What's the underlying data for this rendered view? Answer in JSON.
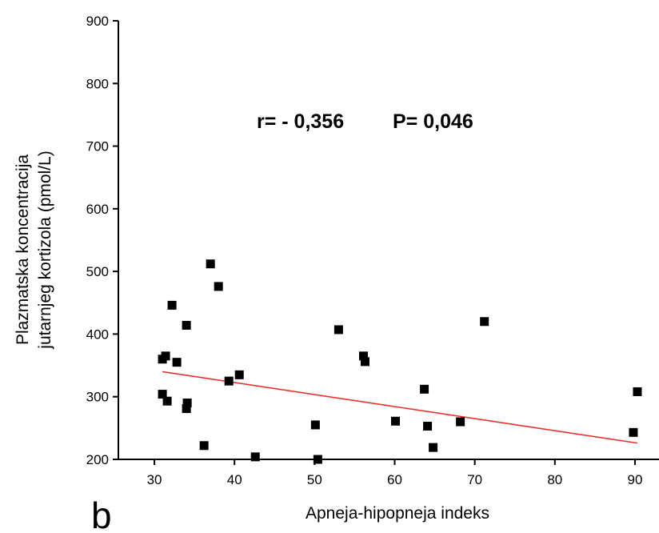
{
  "chart_data": {
    "type": "scatter",
    "xlabel": "Apneja-hipopneja indeks",
    "ylabel_lines": [
      "Plazmatska koncentracija",
      "jutarnjeg kortizola (pmol/L)"
    ],
    "annotation_r": "r= - 0,356",
    "annotation_p": "P= 0,046",
    "panel_label": "b",
    "xlim": [
      25.5,
      93
    ],
    "ylim": [
      200,
      900
    ],
    "x_ticks": [
      30,
      40,
      50,
      60,
      70,
      80,
      90
    ],
    "y_ticks": [
      200,
      300,
      400,
      500,
      600,
      700,
      800,
      900
    ],
    "grid": false,
    "marker_color": "#000000",
    "trend_color": "#e8322e",
    "points": [
      {
        "x": 31.0,
        "y": 360
      },
      {
        "x": 31.4,
        "y": 365
      },
      {
        "x": 31.0,
        "y": 304
      },
      {
        "x": 31.6,
        "y": 293
      },
      {
        "x": 32.2,
        "y": 446
      },
      {
        "x": 32.8,
        "y": 355
      },
      {
        "x": 34.0,
        "y": 414
      },
      {
        "x": 34.1,
        "y": 290
      },
      {
        "x": 34.0,
        "y": 281
      },
      {
        "x": 36.2,
        "y": 222
      },
      {
        "x": 37.0,
        "y": 512
      },
      {
        "x": 38.0,
        "y": 476
      },
      {
        "x": 39.3,
        "y": 325
      },
      {
        "x": 40.6,
        "y": 335
      },
      {
        "x": 42.6,
        "y": 204
      },
      {
        "x": 50.1,
        "y": 255
      },
      {
        "x": 50.4,
        "y": 200
      },
      {
        "x": 53.0,
        "y": 407
      },
      {
        "x": 56.1,
        "y": 365
      },
      {
        "x": 56.3,
        "y": 356
      },
      {
        "x": 60.1,
        "y": 261
      },
      {
        "x": 63.7,
        "y": 312
      },
      {
        "x": 64.1,
        "y": 253
      },
      {
        "x": 64.8,
        "y": 219
      },
      {
        "x": 68.2,
        "y": 260
      },
      {
        "x": 71.2,
        "y": 420
      },
      {
        "x": 89.8,
        "y": 243
      },
      {
        "x": 90.3,
        "y": 308
      }
    ],
    "trend_line": {
      "x": [
        31.0,
        90.3
      ],
      "y": [
        340,
        226
      ]
    }
  }
}
